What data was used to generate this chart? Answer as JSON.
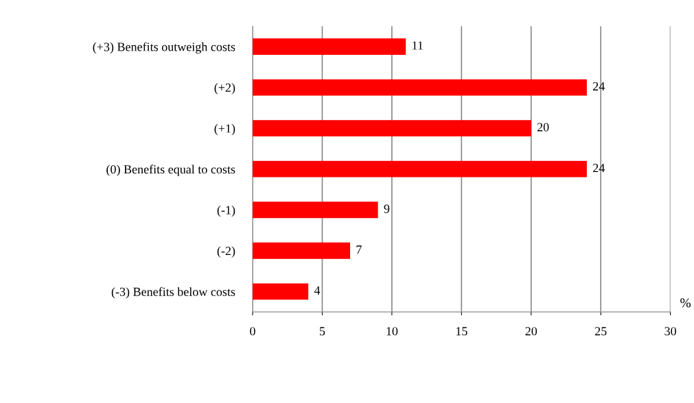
{
  "chart_data": {
    "type": "bar",
    "orientation": "horizontal",
    "categories": [
      "(+3) Benefits outweigh costs",
      "(+2)",
      "(+1)",
      "(0) Benefits equal to costs",
      "(-1)",
      "(-2)",
      "(-3) Benefits below costs"
    ],
    "values": [
      11,
      24,
      20,
      24,
      9,
      7,
      4
    ],
    "color": "#ff0000",
    "xlim": [
      0,
      30
    ],
    "xticks": [
      0,
      5,
      10,
      15,
      20,
      25,
      30
    ],
    "xlabel": "%",
    "grid": "x",
    "data_labels": true
  }
}
